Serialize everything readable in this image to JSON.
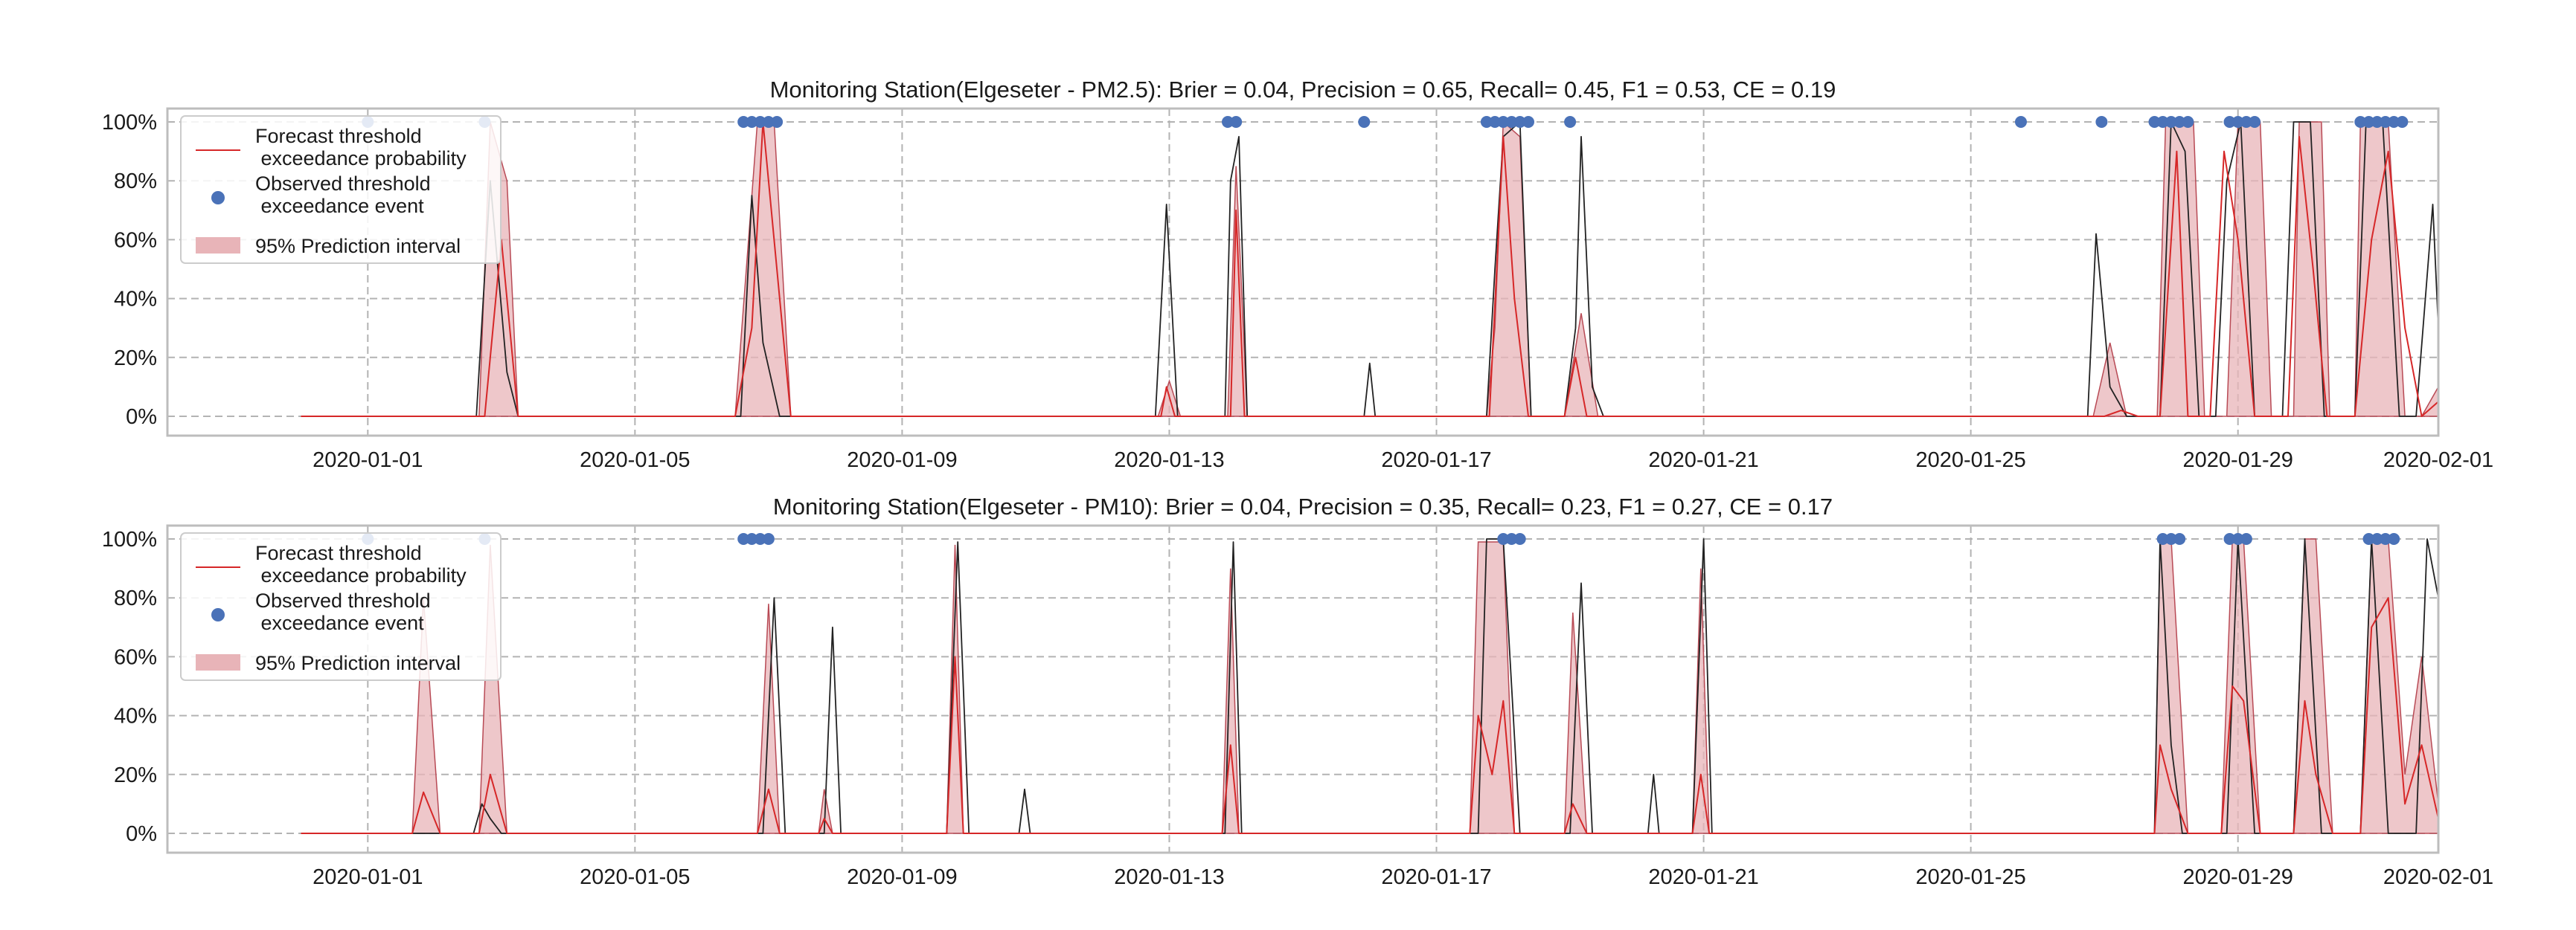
{
  "colors": {
    "forecast_line": "#d62728",
    "observed_line": "#222222",
    "observed_points": "#4a72b8",
    "interval_fill": "#e8b4b8",
    "grid": "#b3b3b3"
  },
  "chart_data": [
    {
      "type": "line",
      "title": "Monitoring Station(Elgeseter - PM2.5): Brier = 0.04, Precision = 0.65, Recall= 0.45, F1 = 0.53, CE = 0.19",
      "xlim": [
        "2019-12-29",
        "2020-02-01"
      ],
      "ylim": [
        0,
        1
      ],
      "x_ticks": [
        "2020-01-01",
        "2020-01-05",
        "2020-01-09",
        "2020-01-13",
        "2020-01-17",
        "2020-01-21",
        "2020-01-25",
        "2020-01-29",
        "2020-02-01"
      ],
      "y_ticks": [
        "0%",
        "20%",
        "40%",
        "60%",
        "80%",
        "100%"
      ],
      "grid": true,
      "legend_position": "top-left",
      "legend": [
        "Forecast threshold\n exceedance probability",
        "Observed threshold\n exceedance event",
        "95% Prediction interval"
      ],
      "series": [
        {
          "name": "Forecast threshold exceedance probability",
          "kind": "forecast",
          "x": [
            "2019-12-31 00:00",
            "2020-01-02 18:00",
            "2020-01-03 00:00",
            "2020-01-03 06:00",
            "2020-01-03 12:00",
            "2020-01-06 12:00",
            "2020-01-06 18:00",
            "2020-01-06 22:00",
            "2020-01-07 03:00",
            "2020-01-07 08:00",
            "2020-01-12 21:00",
            "2020-01-12 23:00",
            "2020-01-13 02:00",
            "2020-01-13 22:00",
            "2020-01-14 00:00",
            "2020-01-14 03:00",
            "2020-01-17 19:00",
            "2020-01-18 00:00",
            "2020-01-18 04:00",
            "2020-01-18 09:00",
            "2020-01-18 22:00",
            "2020-01-19 02:00",
            "2020-01-19 06:00",
            "2020-01-19 12:00",
            "2020-01-27 00:00",
            "2020-01-27 06:00",
            "2020-01-27 12:00",
            "2020-01-27 20:00",
            "2020-01-28 02:00",
            "2020-01-28 06:00",
            "2020-01-28 14:00",
            "2020-01-28 19:00",
            "2020-01-29 00:00",
            "2020-01-29 06:00",
            "2020-01-29 18:00",
            "2020-01-29 22:00",
            "2020-01-30 03:00",
            "2020-01-30 08:00",
            "2020-01-30 18:00",
            "2020-01-31 00:00",
            "2020-01-31 06:00",
            "2020-01-31 12:00",
            "2020-01-31 18:00",
            "2020-02-01 00:00"
          ],
          "values": [
            0.0,
            0.0,
            0.6,
            0.0,
            0.0,
            0.0,
            0.3,
            1.0,
            0.5,
            0.0,
            0.0,
            0.1,
            0.0,
            0.0,
            0.7,
            0.0,
            0.0,
            0.95,
            0.4,
            0.0,
            0.0,
            0.2,
            0.0,
            0.0,
            0.0,
            0.02,
            0.0,
            0.0,
            0.9,
            0.0,
            0.0,
            0.9,
            0.6,
            0.0,
            0.0,
            0.95,
            0.5,
            0.0,
            0.0,
            0.6,
            0.9,
            0.3,
            0.0,
            0.05
          ]
        },
        {
          "name": "Observed pollution level",
          "kind": "observed",
          "x": [
            "2019-12-31 00:00",
            "2020-01-02 15:00",
            "2020-01-02 20:00",
            "2020-01-03 02:00",
            "2020-01-03 06:00",
            "2020-01-06 14:00",
            "2020-01-06 18:00",
            "2020-01-06 22:00",
            "2020-01-07 04:00",
            "2020-01-07 08:00",
            "2020-01-12 19:00",
            "2020-01-12 23:00",
            "2020-01-13 03:00",
            "2020-01-13 20:00",
            "2020-01-13 22:00",
            "2020-01-14 01:00",
            "2020-01-14 04:00",
            "2020-01-15 22:00",
            "2020-01-16 00:00",
            "2020-01-16 02:00",
            "2020-01-17 18:00",
            "2020-01-17 21:00",
            "2020-01-18 00:00",
            "2020-01-18 06:00",
            "2020-01-18 10:00",
            "2020-01-18 22:00",
            "2020-01-19 02:00",
            "2020-01-19 04:00",
            "2020-01-19 08:00",
            "2020-01-19 12:00",
            "2020-01-26 18:00",
            "2020-01-26 21:00",
            "2020-01-27 02:00",
            "2020-01-27 08:00",
            "2020-01-27 20:00",
            "2020-01-28 00:00",
            "2020-01-28 05:00",
            "2020-01-28 10:00",
            "2020-01-28 16:00",
            "2020-01-28 20:00",
            "2020-01-29 01:00",
            "2020-01-29 06:00",
            "2020-01-29 16:00",
            "2020-01-29 20:00",
            "2020-01-30 02:00",
            "2020-01-30 07:00",
            "2020-01-30 18:00",
            "2020-01-30 22:00",
            "2020-01-31 04:00",
            "2020-01-31 10:00",
            "2020-01-31 16:00",
            "2020-01-31 22:00",
            "2020-02-01 00:00"
          ],
          "values": [
            0.0,
            0.0,
            0.8,
            0.15,
            0.0,
            0.0,
            0.75,
            0.25,
            0.0,
            0.0,
            0.0,
            0.72,
            0.0,
            0.0,
            0.8,
            0.95,
            0.0,
            0.0,
            0.18,
            0.0,
            0.0,
            0.5,
            0.95,
            1.0,
            0.0,
            0.0,
            0.3,
            0.95,
            0.1,
            0.0,
            0.0,
            0.62,
            0.1,
            0.0,
            0.0,
            1.0,
            0.9,
            0.0,
            0.0,
            0.8,
            1.0,
            0.0,
            0.0,
            1.0,
            1.0,
            0.0,
            0.0,
            1.0,
            1.0,
            0.0,
            0.0,
            0.72,
            0.3
          ]
        },
        {
          "name": "95% Prediction interval",
          "kind": "interval",
          "x": [
            "2019-12-31 00:00",
            "2020-01-02 16:00",
            "2020-01-02 20:00",
            "2020-01-03 02:00",
            "2020-01-03 06:00",
            "2020-01-06 12:00",
            "2020-01-06 16:00",
            "2020-01-06 20:00",
            "2020-01-07 02:00",
            "2020-01-07 08:00",
            "2020-01-12 20:00",
            "2020-01-13 00:00",
            "2020-01-13 04:00",
            "2020-01-13 21:00",
            "2020-01-14 00:00",
            "2020-01-14 04:00",
            "2020-01-17 18:00",
            "2020-01-17 21:00",
            "2020-01-18 00:00",
            "2020-01-18 06:00",
            "2020-01-18 10:00",
            "2020-01-18 22:00",
            "2020-01-19 04:00",
            "2020-01-19 10:00",
            "2020-01-26 20:00",
            "2020-01-27 02:00",
            "2020-01-27 08:00",
            "2020-01-27 19:00",
            "2020-01-27 22:00",
            "2020-01-28 08:00",
            "2020-01-28 12:00",
            "2020-01-28 20:00",
            "2020-01-29 00:00",
            "2020-01-29 08:00",
            "2020-01-29 12:00",
            "2020-01-29 20:00",
            "2020-01-29 22:00",
            "2020-01-30 06:00",
            "2020-01-30 09:00",
            "2020-01-30 18:00",
            "2020-01-30 20:00",
            "2020-01-31 06:00",
            "2020-01-31 12:00",
            "2020-01-31 18:00",
            "2020-02-01 00:00"
          ],
          "values": [
            0.0,
            0.0,
            1.0,
            0.8,
            0.0,
            0.0,
            0.5,
            1.0,
            1.0,
            0.0,
            0.0,
            0.12,
            0.0,
            0.0,
            0.85,
            0.0,
            0.0,
            0.3,
            1.0,
            0.95,
            0.0,
            0.0,
            0.35,
            0.0,
            0.0,
            0.25,
            0.0,
            0.0,
            1.0,
            1.0,
            0.0,
            0.0,
            1.0,
            1.0,
            0.0,
            0.0,
            1.0,
            1.0,
            0.0,
            0.0,
            1.0,
            1.0,
            0.0,
            0.0,
            0.1
          ]
        },
        {
          "name": "Observed threshold exceedance event",
          "kind": "events",
          "x": [
            "2020-01-01 00:00",
            "2020-01-02 18:00",
            "2020-01-06 15:00",
            "2020-01-06 18:00",
            "2020-01-06 21:00",
            "2020-01-07 00:00",
            "2020-01-07 03:00",
            "2020-01-13 21:00",
            "2020-01-14 00:00",
            "2020-01-15 22:00",
            "2020-01-17 18:00",
            "2020-01-17 21:00",
            "2020-01-18 00:00",
            "2020-01-18 03:00",
            "2020-01-18 06:00",
            "2020-01-18 09:00",
            "2020-01-19 00:00",
            "2020-01-25 18:00",
            "2020-01-26 23:00",
            "2020-01-27 18:00",
            "2020-01-27 21:00",
            "2020-01-28 00:00",
            "2020-01-28 03:00",
            "2020-01-28 06:00",
            "2020-01-28 21:00",
            "2020-01-29 00:00",
            "2020-01-29 03:00",
            "2020-01-29 06:00",
            "2020-01-30 20:00",
            "2020-01-30 23:00",
            "2020-01-31 02:00",
            "2020-01-31 05:00",
            "2020-01-31 08:00",
            "2020-01-31 11:00"
          ],
          "values": [
            1.0,
            1.0,
            1.0,
            1.0,
            1.0,
            1.0,
            1.0,
            1.0,
            1.0,
            1.0,
            1.0,
            1.0,
            1.0,
            1.0,
            1.0,
            1.0,
            1.0,
            1.0,
            1.0,
            1.0,
            1.0,
            1.0,
            1.0,
            1.0,
            1.0,
            1.0,
            1.0,
            1.0,
            1.0,
            1.0,
            1.0,
            1.0,
            1.0,
            1.0
          ]
        }
      ]
    },
    {
      "type": "line",
      "title": "Monitoring Station(Elgeseter - PM10): Brier = 0.04, Precision = 0.35, Recall= 0.23, F1 = 0.27, CE = 0.17",
      "xlim": [
        "2019-12-29",
        "2020-02-01"
      ],
      "ylim": [
        0,
        1
      ],
      "x_ticks": [
        "2020-01-01",
        "2020-01-05",
        "2020-01-09",
        "2020-01-13",
        "2020-01-17",
        "2020-01-21",
        "2020-01-25",
        "2020-01-29",
        "2020-02-01"
      ],
      "y_ticks": [
        "0%",
        "20%",
        "40%",
        "60%",
        "80%",
        "100%"
      ],
      "grid": true,
      "legend_position": "top-left",
      "legend": [
        "Forecast threshold\n exceedance probability",
        "Observed threshold\n exceedance event",
        "95% Prediction interval"
      ],
      "series": [
        {
          "name": "Forecast threshold exceedance probability",
          "kind": "forecast",
          "x": [
            "2019-12-31 00:00",
            "2020-01-01 16:00",
            "2020-01-01 20:00",
            "2020-01-02 02:00",
            "2020-01-02 16:00",
            "2020-01-02 20:00",
            "2020-01-03 02:00",
            "2020-01-06 20:00",
            "2020-01-07 00:00",
            "2020-01-07 04:00",
            "2020-01-07 18:00",
            "2020-01-07 20:00",
            "2020-01-07 23:00",
            "2020-01-09 16:00",
            "2020-01-09 19:00",
            "2020-01-09 22:00",
            "2020-01-13 19:00",
            "2020-01-13 22:00",
            "2020-01-14 01:00",
            "2020-01-17 12:00",
            "2020-01-17 15:00",
            "2020-01-17 20:00",
            "2020-01-18 00:00",
            "2020-01-18 04:00",
            "2020-01-18 22:00",
            "2020-01-19 01:00",
            "2020-01-19 06:00",
            "2020-01-20 20:00",
            "2020-01-20 23:00",
            "2020-01-21 02:00",
            "2020-01-27 18:00",
            "2020-01-27 20:00",
            "2020-01-28 00:00",
            "2020-01-28 06:00",
            "2020-01-28 18:00",
            "2020-01-28 22:00",
            "2020-01-29 02:00",
            "2020-01-29 08:00",
            "2020-01-29 20:00",
            "2020-01-30 00:00",
            "2020-01-30 04:00",
            "2020-01-30 10:00",
            "2020-01-30 20:00",
            "2020-01-31 00:00",
            "2020-01-31 06:00",
            "2020-01-31 12:00",
            "2020-01-31 18:00",
            "2020-02-01 00:00"
          ],
          "values": [
            0.0,
            0.0,
            0.14,
            0.0,
            0.0,
            0.2,
            0.0,
            0.0,
            0.15,
            0.0,
            0.0,
            0.05,
            0.0,
            0.0,
            0.6,
            0.0,
            0.0,
            0.3,
            0.0,
            0.0,
            0.4,
            0.2,
            0.45,
            0.0,
            0.0,
            0.1,
            0.0,
            0.0,
            0.2,
            0.0,
            0.0,
            0.3,
            0.15,
            0.0,
            0.0,
            0.5,
            0.45,
            0.0,
            0.0,
            0.45,
            0.2,
            0.0,
            0.0,
            0.7,
            0.8,
            0.1,
            0.3,
            0.05
          ]
        },
        {
          "name": "Observed pollution level",
          "kind": "observed",
          "x": [
            "2019-12-31 00:00",
            "2020-01-02 14:00",
            "2020-01-02 17:00",
            "2020-01-02 20:00",
            "2020-01-03 00:00",
            "2020-01-06 22:00",
            "2020-01-07 02:00",
            "2020-01-07 06:00",
            "2020-01-07 20:00",
            "2020-01-07 23:00",
            "2020-01-08 02:00",
            "2020-01-09 16:00",
            "2020-01-09 20:00",
            "2020-01-10 00:00",
            "2020-01-10 18:00",
            "2020-01-10 20:00",
            "2020-01-10 22:00",
            "2020-01-13 20:00",
            "2020-01-13 23:00",
            "2020-01-14 02:00",
            "2020-01-17 15:00",
            "2020-01-17 18:00",
            "2020-01-18 00:00",
            "2020-01-18 06:00",
            "2020-01-19 00:00",
            "2020-01-19 04:00",
            "2020-01-19 08:00",
            "2020-01-20 04:00",
            "2020-01-20 06:00",
            "2020-01-20 08:00",
            "2020-01-20 20:00",
            "2020-01-21 00:00",
            "2020-01-21 03:00",
            "2020-01-27 18:00",
            "2020-01-27 20:00",
            "2020-01-28 00:00",
            "2020-01-28 04:00",
            "2020-01-28 20:00",
            "2020-01-29 00:00",
            "2020-01-29 06:00",
            "2020-01-29 20:00",
            "2020-01-30 00:00",
            "2020-01-30 06:00",
            "2020-01-30 20:00",
            "2020-01-31 00:00",
            "2020-01-31 06:00",
            "2020-01-31 16:00",
            "2020-01-31 20:00",
            "2020-02-01 00:00"
          ],
          "values": [
            0.0,
            0.0,
            0.1,
            0.05,
            0.0,
            0.0,
            0.8,
            0.0,
            0.0,
            0.7,
            0.0,
            0.0,
            0.99,
            0.0,
            0.0,
            0.15,
            0.0,
            0.0,
            0.99,
            0.0,
            0.0,
            1.0,
            1.0,
            0.0,
            0.0,
            0.85,
            0.0,
            0.0,
            0.2,
            0.0,
            0.0,
            1.0,
            0.0,
            0.0,
            1.0,
            0.3,
            0.0,
            0.0,
            1.0,
            0.0,
            0.0,
            1.0,
            0.0,
            0.0,
            1.0,
            0.0,
            0.0,
            1.0,
            0.8
          ]
        },
        {
          "name": "95% Prediction interval",
          "kind": "interval",
          "x": [
            "2019-12-31 00:00",
            "2020-01-01 16:00",
            "2020-01-01 20:00",
            "2020-01-02 02:00",
            "2020-01-02 16:00",
            "2020-01-02 20:00",
            "2020-01-03 02:00",
            "2020-01-06 20:00",
            "2020-01-07 00:00",
            "2020-01-07 04:00",
            "2020-01-07 18:00",
            "2020-01-07 20:00",
            "2020-01-07 23:00",
            "2020-01-09 16:00",
            "2020-01-09 19:00",
            "2020-01-09 22:00",
            "2020-01-13 19:00",
            "2020-01-13 22:00",
            "2020-01-14 01:00",
            "2020-01-17 12:00",
            "2020-01-17 15:00",
            "2020-01-17 20:00",
            "2020-01-18 00:00",
            "2020-01-18 04:00",
            "2020-01-18 22:00",
            "2020-01-19 01:00",
            "2020-01-19 06:00",
            "2020-01-20 20:00",
            "2020-01-20 23:00",
            "2020-01-21 02:00",
            "2020-01-27 18:00",
            "2020-01-27 20:00",
            "2020-01-28 00:00",
            "2020-01-28 06:00",
            "2020-01-28 18:00",
            "2020-01-28 22:00",
            "2020-01-29 02:00",
            "2020-01-29 08:00",
            "2020-01-29 20:00",
            "2020-01-30 00:00",
            "2020-01-30 04:00",
            "2020-01-30 10:00",
            "2020-01-30 20:00",
            "2020-01-31 00:00",
            "2020-01-31 06:00",
            "2020-01-31 12:00",
            "2020-01-31 18:00",
            "2020-02-01 00:00"
          ],
          "values": [
            0.0,
            0.0,
            0.8,
            0.0,
            0.0,
            0.98,
            0.0,
            0.0,
            0.78,
            0.0,
            0.0,
            0.15,
            0.0,
            0.0,
            0.98,
            0.0,
            0.0,
            0.9,
            0.0,
            0.0,
            0.99,
            0.99,
            0.99,
            0.0,
            0.0,
            0.75,
            0.0,
            0.0,
            0.9,
            0.0,
            0.0,
            1.0,
            1.0,
            0.0,
            0.0,
            1.0,
            1.0,
            0.0,
            0.0,
            1.0,
            1.0,
            0.0,
            0.0,
            1.0,
            1.0,
            0.2,
            0.6,
            0.1
          ]
        },
        {
          "name": "Observed threshold exceedance event",
          "kind": "events",
          "x": [
            "2020-01-01 00:00",
            "2020-01-02 18:00",
            "2020-01-06 15:00",
            "2020-01-06 18:00",
            "2020-01-06 21:00",
            "2020-01-07 00:00",
            "2020-01-18 00:00",
            "2020-01-18 03:00",
            "2020-01-18 06:00",
            "2020-01-27 21:00",
            "2020-01-28 00:00",
            "2020-01-28 03:00",
            "2020-01-28 21:00",
            "2020-01-29 00:00",
            "2020-01-29 03:00",
            "2020-01-30 23:00",
            "2020-01-31 02:00",
            "2020-01-31 05:00",
            "2020-01-31 08:00"
          ],
          "values": [
            1.0,
            1.0,
            1.0,
            1.0,
            1.0,
            1.0,
            1.0,
            1.0,
            1.0,
            1.0,
            1.0,
            1.0,
            1.0,
            1.0,
            1.0,
            1.0,
            1.0,
            1.0,
            1.0
          ]
        }
      ]
    }
  ]
}
